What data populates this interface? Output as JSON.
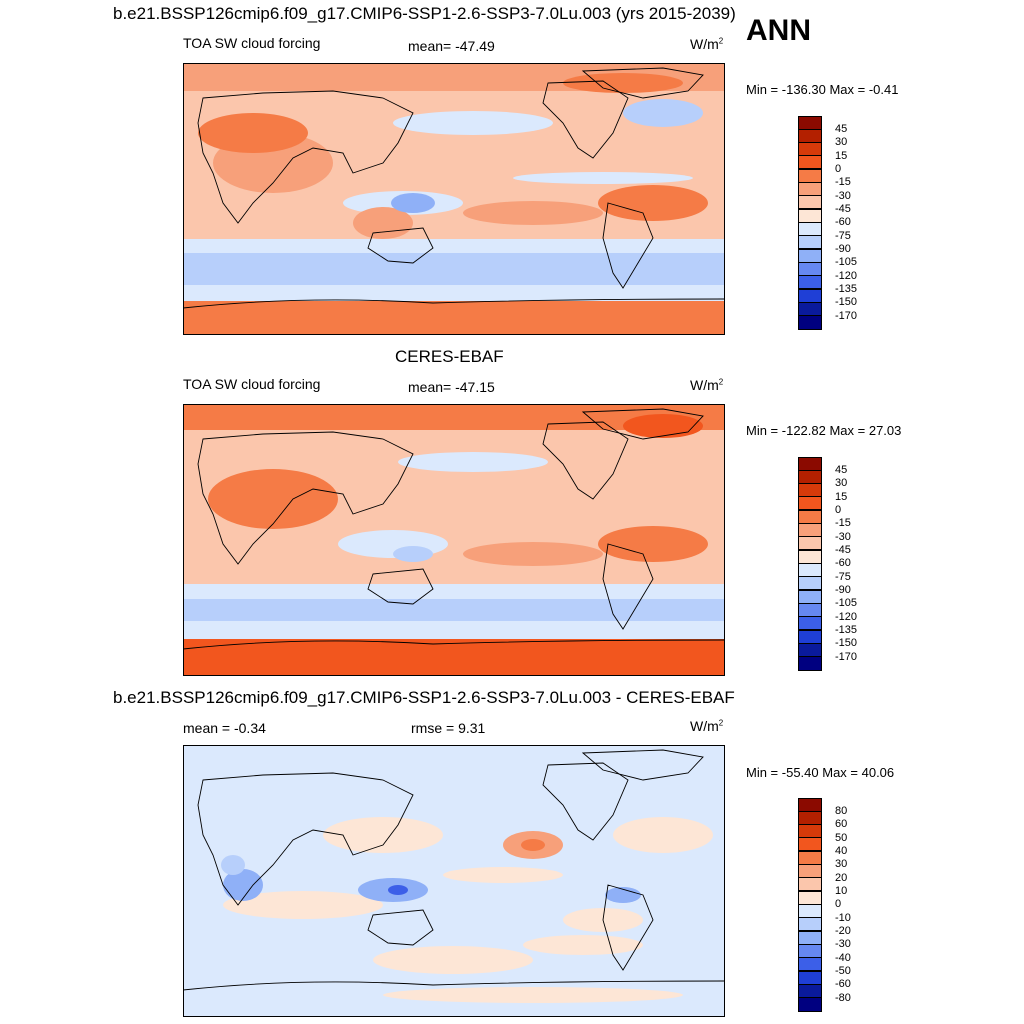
{
  "header": {
    "main_title": "b.e21.BSSP126cmip6.f09_g17.CMIP6-SSP1-2.6-SSP3-7.0Lu.003 (yrs 2015-2039)",
    "season": "ANN"
  },
  "panels": [
    {
      "title": "",
      "left": "TOA SW cloud forcing",
      "center": "mean= -47.49",
      "units": "W/m",
      "units_sup": "2",
      "minmax": "Min = -136.30 Max =  -0.41",
      "colorbar": [
        "45",
        "30",
        "15",
        "0",
        "-15",
        "-30",
        "-45",
        "-60",
        "-75",
        "-90",
        "-105",
        "-120",
        "-135",
        "-150",
        "-170"
      ]
    },
    {
      "title": "CERES-EBAF",
      "left": "TOA SW cloud forcing",
      "center": "mean= -47.15",
      "units": "W/m",
      "units_sup": "2",
      "minmax": "Min = -122.82 Max =  27.03",
      "colorbar": [
        "45",
        "30",
        "15",
        "0",
        "-15",
        "-30",
        "-45",
        "-60",
        "-75",
        "-90",
        "-105",
        "-120",
        "-135",
        "-150",
        "-170"
      ]
    },
    {
      "title": "b.e21.BSSP126cmip6.f09_g17.CMIP6-SSP1-2.6-SSP3-7.0Lu.003 - CERES-EBAF",
      "left": "mean =  -0.34",
      "center": "rmse =   9.31",
      "units": "W/m",
      "units_sup": "2",
      "minmax": "Min = -55.40 Max =  40.06",
      "colorbar": [
        "80",
        "60",
        "50",
        "40",
        "30",
        "20",
        "10",
        "0",
        "-10",
        "-20",
        "-30",
        "-40",
        "-50",
        "-60",
        "-80"
      ]
    }
  ],
  "colors": {
    "scale": [
      "#8b0a00",
      "#b32000",
      "#d63a0a",
      "#f2561e",
      "#f57b46",
      "#f7a07a",
      "#fbc6ac",
      "#fde6d6",
      "#dbe9fd",
      "#b7cffb",
      "#8fb0f7",
      "#6688f1",
      "#3c5fe8",
      "#1f3fd6",
      "#0a1a9c",
      "#000080"
    ]
  }
}
